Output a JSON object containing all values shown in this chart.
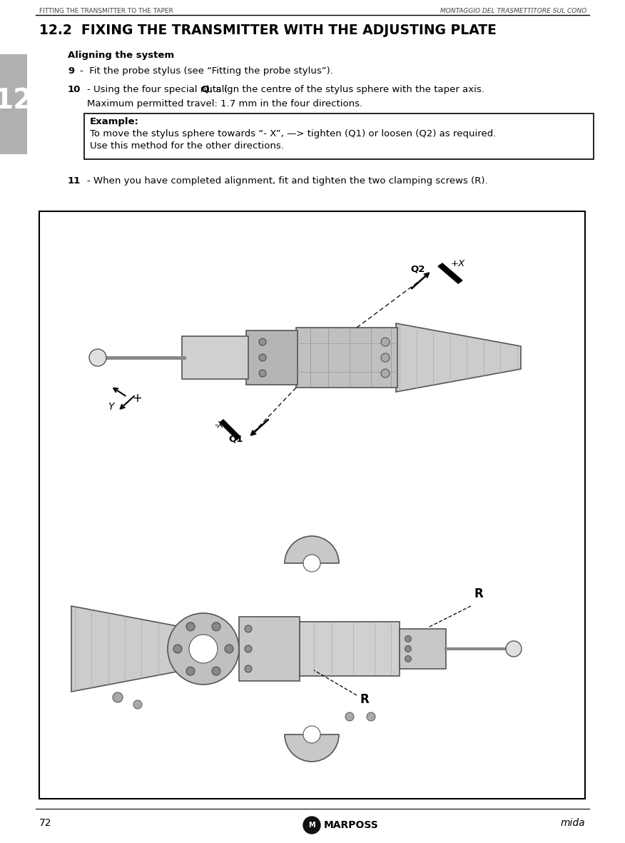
{
  "header_left": "FITTING THE TRANSMITTER TO THE TAPER",
  "header_right": "MONTAGGIO DEL TRASMETTITORE SUL CONO",
  "section_number": "12.2",
  "section_title": "FIXING THE TRANSMITTER WITH THE ADJUSTING PLATE",
  "subsection_title": "Aligning the system",
  "step9": "Fit the probe stylus (see “Fitting the probe stylus”).",
  "step10_line1": "- Using the four special nuts (",
  "step10_Q": "Q",
  "step10_line1b": "), align the centre of the stylus sphere with the taper axis.",
  "step10_line2": "Maximum permitted travel: 1.7 mm in the four directions.",
  "example_label": "Example:",
  "example_line1": "To move the stylus sphere towards “- X”, —> tighten (Q1) or loosen (Q2) as required.",
  "example_line2": "Use this method for the other directions.",
  "step11_text": "- When you have completed alignment, fit and tighten the two clamping screws (R).",
  "page_number": "72",
  "logo_text": "MARPOSS",
  "brand": "mida",
  "tab_number": "12",
  "bg_color": "#ffffff",
  "tab_bg": "#b0b0b0",
  "header_font_size": 6.5,
  "body_font_size": 9.5,
  "section_font_size": 13.5
}
